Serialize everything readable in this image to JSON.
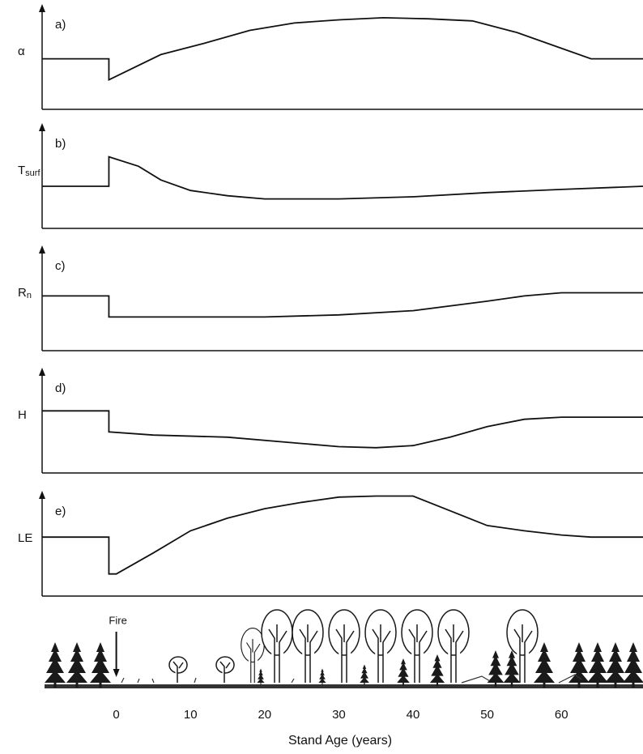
{
  "chart_data": [
    {
      "type": "line",
      "label": "a)",
      "ylabel": "α",
      "xlim": [
        -10,
        71
      ],
      "ylim": [
        0,
        100
      ],
      "x": [
        -10,
        -1,
        -1,
        6,
        12,
        18,
        24,
        30,
        36,
        42,
        48,
        54,
        60,
        64,
        71
      ],
      "values": [
        48,
        48,
        28,
        52,
        63,
        75,
        82,
        85,
        87,
        86,
        84,
        73,
        58,
        48,
        48
      ]
    },
    {
      "type": "line",
      "label": "b)",
      "ylabel": "T",
      "ylabel_sub": "surf",
      "xlim": [
        -10,
        71
      ],
      "ylim": [
        0,
        100
      ],
      "x": [
        -10,
        -1,
        -1,
        3,
        6,
        10,
        15,
        20,
        30,
        40,
        50,
        60,
        71
      ],
      "values": [
        40,
        40,
        68,
        59,
        46,
        36,
        31,
        28,
        28,
        30,
        34,
        37,
        40
      ]
    },
    {
      "type": "line",
      "label": "c)",
      "ylabel": "R",
      "ylabel_sub": "n",
      "xlim": [
        -10,
        71
      ],
      "ylim": [
        0,
        100
      ],
      "x": [
        -10,
        -1,
        -1,
        20,
        30,
        40,
        50,
        55,
        60,
        71
      ],
      "values": [
        52,
        52,
        32,
        32,
        34,
        38,
        47,
        52,
        55,
        55
      ]
    },
    {
      "type": "line",
      "label": "d)",
      "ylabel": "H",
      "xlim": [
        -10,
        71
      ],
      "ylim": [
        0,
        100
      ],
      "x": [
        -10,
        -1,
        -1,
        5,
        15,
        25,
        30,
        35,
        40,
        45,
        50,
        55,
        60,
        71
      ],
      "values": [
        59,
        59,
        39,
        36,
        34,
        28,
        25,
        24,
        26,
        34,
        44,
        51,
        53,
        53
      ]
    },
    {
      "type": "line",
      "label": "e)",
      "ylabel": "LE",
      "xlim": [
        -10,
        71
      ],
      "ylim": [
        0,
        100
      ],
      "x": [
        -10,
        -1,
        -1,
        0,
        5,
        10,
        15,
        20,
        25,
        30,
        35,
        40,
        45,
        50,
        55,
        60,
        64,
        71
      ],
      "values": [
        56,
        56,
        21,
        21,
        41,
        62,
        74,
        83,
        89,
        94,
        95,
        95,
        81,
        67,
        62,
        58,
        56,
        56
      ],
      "xticks": [
        0,
        10,
        20,
        30,
        40,
        50,
        60
      ],
      "xlabel": "Stand Age (years)",
      "annotation": "Fire",
      "annotation_x": 0
    }
  ]
}
